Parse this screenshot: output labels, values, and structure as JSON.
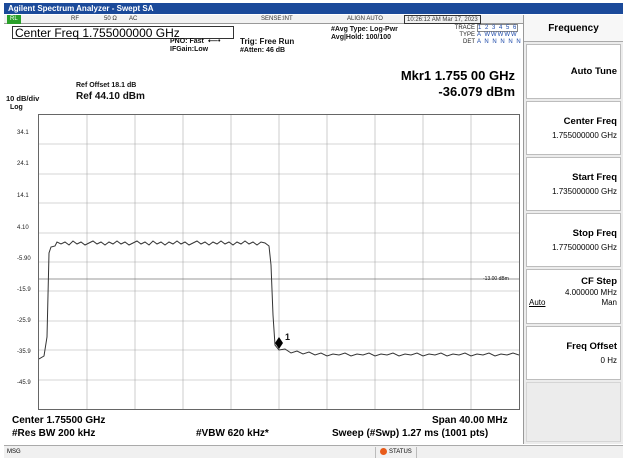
{
  "app": {
    "title": "Agilent Spectrum Analyzer - Swept SA"
  },
  "status_row": {
    "mode": "RL",
    "rf": "RF",
    "impedance": "50 Ω",
    "coupling": "AC",
    "sense": "SENSE:INT",
    "align": "ALIGN AUTO",
    "datetime": "10:26:12 AM Mar 17, 2023"
  },
  "header": {
    "center_freq": "Center Freq 1.755000000 GHz",
    "pno": "PNO: Fast",
    "ifgain": "IFGain:Low",
    "trig": "Trig: Free Run",
    "atten": "#Atten: 46 dB",
    "avg_type": "#Avg Type: Log-Pwr",
    "avg_hold": "Avg|Hold: 100/100",
    "trace_label": "TRACE",
    "trace_val": "1 2 3 4 5 6",
    "type_label": "TYPE",
    "type_val": "A WWWWW",
    "det_label": "DET",
    "det_val": "A N N N N N"
  },
  "marker": {
    "line1": "Mkr1 1.755 00 GHz",
    "line2": "-36.079 dBm"
  },
  "scale": {
    "ref_offset": "Ref Offset 18.1 dB",
    "db_div": "10 dB/div",
    "ref": "Ref 44.10 dBm",
    "log": "Log",
    "labels": [
      "34.1",
      "24.1",
      "14.1",
      "4.10",
      "-5.90",
      "-15.9",
      "-25.9",
      "-35.9",
      "-45.9"
    ],
    "limit_label": "-13.00 dBm",
    "marker_tag": "1"
  },
  "bottom": {
    "center": "Center 1.75500 GHz",
    "span": "Span 40.00 MHz",
    "rbw": "#Res BW 200 kHz",
    "vbw": "#VBW 620 kHz*",
    "sweep": "Sweep (#Swp)  1.27 ms (1001 pts)"
  },
  "msgbar": {
    "msg": "MSG",
    "status": "STATUS"
  },
  "softkeys": {
    "header": "Frequency",
    "auto_tune": "Auto Tune",
    "center_freq": {
      "title": "Center Freq",
      "value": "1.755000000 GHz"
    },
    "start_freq": {
      "title": "Start Freq",
      "value": "1.735000000 GHz"
    },
    "stop_freq": {
      "title": "Stop Freq",
      "value": "1.775000000 GHz"
    },
    "cf_step": {
      "title": "CF Step",
      "value": "4.000000 MHz",
      "auto": "Auto",
      "man": "Man"
    },
    "freq_offset": {
      "title": "Freq Offset",
      "value": "0 Hz"
    }
  }
}
